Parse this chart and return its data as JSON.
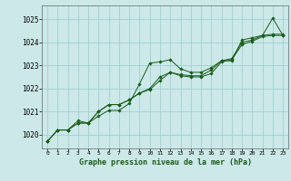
{
  "title": "Graphe pression niveau de la mer (hPa)",
  "bg_color": "#cce8e8",
  "grid_color": "#99cccc",
  "line_color": "#1a5c1a",
  "marker_color": "#1a5c1a",
  "xlim": [
    -0.5,
    23.5
  ],
  "ylim": [
    1019.4,
    1025.6
  ],
  "yticks": [
    1020,
    1021,
    1022,
    1023,
    1024,
    1025
  ],
  "xtick_labels": [
    "0",
    "1",
    "2",
    "3",
    "4",
    "5",
    "6",
    "7",
    "8",
    "9",
    "10",
    "11",
    "12",
    "13",
    "14",
    "15",
    "16",
    "17",
    "18",
    "19",
    "20",
    "21",
    "22",
    "23"
  ],
  "series1": [
    1019.7,
    1020.2,
    1020.2,
    1020.6,
    1020.5,
    1020.8,
    1021.05,
    1021.05,
    1021.35,
    1022.2,
    1023.1,
    1023.15,
    1023.25,
    1022.85,
    1022.7,
    1022.7,
    1022.9,
    1023.2,
    1023.2,
    1024.1,
    1024.2,
    1024.3,
    1025.05,
    1024.3
  ],
  "series2": [
    1019.7,
    1020.2,
    1020.2,
    1020.5,
    1020.5,
    1021.0,
    1021.3,
    1021.3,
    1021.5,
    1021.8,
    1021.95,
    1022.35,
    1022.7,
    1022.55,
    1022.5,
    1022.5,
    1022.65,
    1023.15,
    1023.25,
    1023.9,
    1024.05,
    1024.25,
    1024.3,
    1024.3
  ],
  "series3": [
    1019.7,
    1020.2,
    1020.2,
    1020.5,
    1020.5,
    1021.0,
    1021.3,
    1021.3,
    1021.5,
    1021.8,
    1022.0,
    1022.5,
    1022.7,
    1022.6,
    1022.55,
    1022.55,
    1022.8,
    1023.2,
    1023.3,
    1024.0,
    1024.1,
    1024.3,
    1024.35,
    1024.35
  ]
}
